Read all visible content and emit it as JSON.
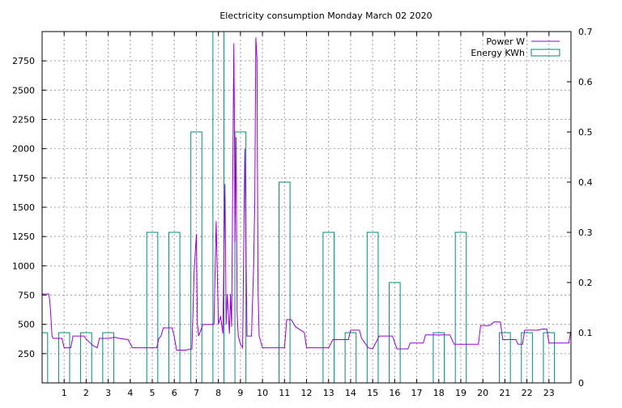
{
  "chart_data": {
    "type": "line",
    "title": "Electricity consumption Monday March 02 2020",
    "xlabel": "",
    "ylabel": "",
    "grid": true,
    "legend_position": "top-right",
    "x_range": [
      0,
      24
    ],
    "x_ticks": [
      1,
      2,
      3,
      4,
      5,
      6,
      7,
      8,
      9,
      10,
      11,
      12,
      13,
      14,
      15,
      16,
      17,
      18,
      19,
      20,
      21,
      22,
      23
    ],
    "y_left": {
      "range": [
        0,
        3000
      ],
      "ticks": [
        250,
        500,
        750,
        1000,
        1250,
        1500,
        1750,
        2000,
        2250,
        2500,
        2750
      ]
    },
    "y_right": {
      "range": [
        0,
        0.7
      ],
      "ticks": [
        0,
        0.1,
        0.2,
        0.3,
        0.4,
        0.5,
        0.6,
        0.7
      ]
    },
    "series": [
      {
        "name": "Power W",
        "axis": "left",
        "color": "#9400d3",
        "style": "line",
        "points": [
          [
            0.0,
            760
          ],
          [
            0.3,
            760
          ],
          [
            0.35,
            700
          ],
          [
            0.4,
            560
          ],
          [
            0.45,
            400
          ],
          [
            0.5,
            380
          ],
          [
            0.9,
            380
          ],
          [
            1.0,
            300
          ],
          [
            1.3,
            300
          ],
          [
            1.4,
            400
          ],
          [
            1.9,
            400
          ],
          [
            2.0,
            375
          ],
          [
            2.3,
            320
          ],
          [
            2.5,
            300
          ],
          [
            2.6,
            380
          ],
          [
            3.0,
            380
          ],
          [
            3.3,
            390
          ],
          [
            3.5,
            380
          ],
          [
            3.9,
            370
          ],
          [
            4.1,
            300
          ],
          [
            4.8,
            300
          ],
          [
            5.2,
            300
          ],
          [
            5.3,
            380
          ],
          [
            5.4,
            400
          ],
          [
            5.5,
            470
          ],
          [
            5.9,
            470
          ],
          [
            6.0,
            390
          ],
          [
            6.1,
            280
          ],
          [
            6.5,
            280
          ],
          [
            6.8,
            290
          ],
          [
            6.9,
            950
          ],
          [
            7.0,
            1270
          ],
          [
            7.05,
            500
          ],
          [
            7.1,
            400
          ],
          [
            7.2,
            450
          ],
          [
            7.3,
            500
          ],
          [
            7.8,
            500
          ],
          [
            7.9,
            1380
          ],
          [
            8.0,
            500
          ],
          [
            8.1,
            570
          ],
          [
            8.2,
            420
          ],
          [
            8.3,
            1700
          ],
          [
            8.35,
            500
          ],
          [
            8.4,
            760
          ],
          [
            8.5,
            420
          ],
          [
            8.55,
            760
          ],
          [
            8.6,
            480
          ],
          [
            8.7,
            2900
          ],
          [
            8.72,
            2380
          ],
          [
            8.75,
            1200
          ],
          [
            8.8,
            2100
          ],
          [
            8.85,
            600
          ],
          [
            8.9,
            400
          ],
          [
            9.0,
            330
          ],
          [
            9.1,
            300
          ],
          [
            9.2,
            2000
          ],
          [
            9.3,
            400
          ],
          [
            9.5,
            400
          ],
          [
            9.6,
            1000
          ],
          [
            9.65,
            1560
          ],
          [
            9.7,
            2950
          ],
          [
            9.75,
            2770
          ],
          [
            9.8,
            800
          ],
          [
            9.85,
            400
          ],
          [
            10.0,
            300
          ],
          [
            11.0,
            300
          ],
          [
            11.1,
            540
          ],
          [
            11.3,
            540
          ],
          [
            11.5,
            480
          ],
          [
            11.9,
            430
          ],
          [
            12.0,
            300
          ],
          [
            13.0,
            300
          ],
          [
            13.2,
            370
          ],
          [
            13.9,
            370
          ],
          [
            14.0,
            450
          ],
          [
            14.4,
            450
          ],
          [
            14.5,
            380
          ],
          [
            14.8,
            300
          ],
          [
            15.0,
            290
          ],
          [
            15.3,
            400
          ],
          [
            15.9,
            400
          ],
          [
            16.1,
            290
          ],
          [
            16.6,
            290
          ],
          [
            16.7,
            340
          ],
          [
            17.3,
            340
          ],
          [
            17.4,
            410
          ],
          [
            18.5,
            410
          ],
          [
            18.7,
            330
          ],
          [
            19.8,
            330
          ],
          [
            19.9,
            490
          ],
          [
            20.3,
            490
          ],
          [
            20.5,
            520
          ],
          [
            20.8,
            520
          ],
          [
            20.9,
            370
          ],
          [
            21.5,
            370
          ],
          [
            21.6,
            330
          ],
          [
            21.8,
            330
          ],
          [
            21.9,
            450
          ],
          [
            22.5,
            450
          ],
          [
            22.7,
            460
          ],
          [
            22.9,
            460
          ],
          [
            23.0,
            340
          ],
          [
            23.9,
            340
          ],
          [
            24.0,
            450
          ]
        ]
      },
      {
        "name": "Energy KWh",
        "axis": "right",
        "color": "#008b7a",
        "style": "bars",
        "bars": [
          {
            "hour": 0,
            "value": 0.1
          },
          {
            "hour": 1,
            "value": 0.1
          },
          {
            "hour": 2,
            "value": 0.1
          },
          {
            "hour": 3,
            "value": 0.1
          },
          {
            "hour": 4,
            "value": 0.0
          },
          {
            "hour": 5,
            "value": 0.3
          },
          {
            "hour": 6,
            "value": 0.3
          },
          {
            "hour": 7,
            "value": 0.5
          },
          {
            "hour": 8,
            "value": 0.7
          },
          {
            "hour": 9,
            "value": 0.5
          },
          {
            "hour": 10,
            "value": 0.0
          },
          {
            "hour": 11,
            "value": 0.4
          },
          {
            "hour": 12,
            "value": 0.0
          },
          {
            "hour": 13,
            "value": 0.3
          },
          {
            "hour": 14,
            "value": 0.1
          },
          {
            "hour": 15,
            "value": 0.3
          },
          {
            "hour": 16,
            "value": 0.2
          },
          {
            "hour": 17,
            "value": 0.0
          },
          {
            "hour": 18,
            "value": 0.1
          },
          {
            "hour": 19,
            "value": 0.3
          },
          {
            "hour": 20,
            "value": 0.0
          },
          {
            "hour": 21,
            "value": 0.1
          },
          {
            "hour": 22,
            "value": 0.1
          },
          {
            "hour": 23,
            "value": 0.1
          }
        ]
      }
    ]
  }
}
